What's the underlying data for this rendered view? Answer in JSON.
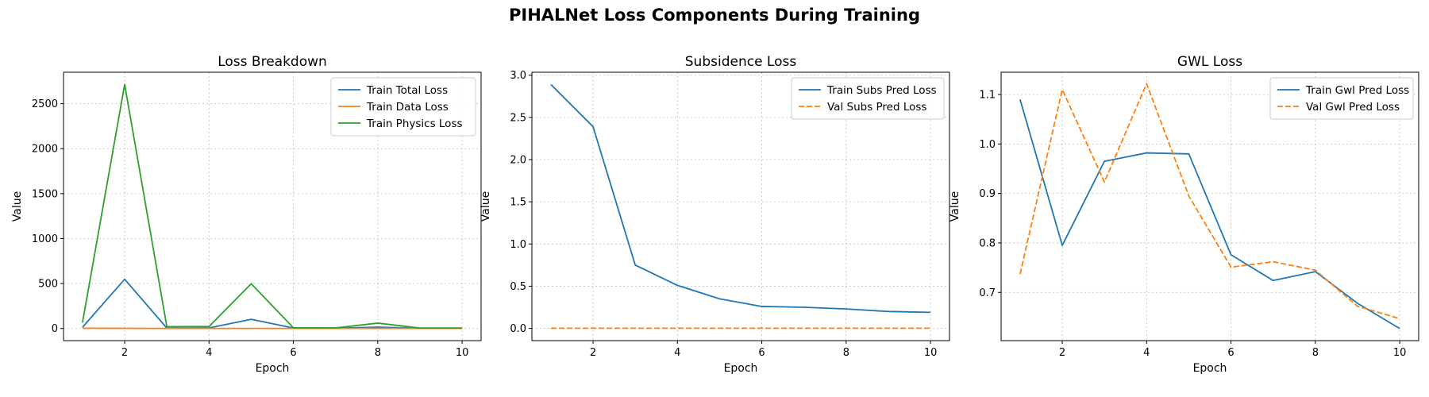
{
  "figure": {
    "title": "PIHALNet Loss Components During Training"
  },
  "chart_data": [
    {
      "type": "line",
      "title": "Loss Breakdown",
      "xlabel": "Epoch",
      "ylabel": "Value",
      "x": [
        1,
        2,
        3,
        4,
        5,
        6,
        7,
        8,
        9,
        10
      ],
      "xlim": [
        0.55,
        10.45
      ],
      "ylim": [
        -135,
        2850
      ],
      "xticks": [
        2,
        4,
        6,
        8,
        10
      ],
      "yticks": [
        0,
        500,
        1000,
        1500,
        2000,
        2500
      ],
      "grid": true,
      "legend": "top-right",
      "series": [
        {
          "name": "Train Total Loss",
          "color": "#1f77b4",
          "dash": "solid",
          "values": [
            14,
            548,
            4,
            6,
            102,
            5,
            4,
            15,
            3,
            3
          ]
        },
        {
          "name": "Train Data Loss",
          "color": "#ff7f0e",
          "dash": "solid",
          "values": [
            3,
            2,
            1,
            1,
            1,
            1,
            1,
            1,
            1,
            1
          ]
        },
        {
          "name": "Train Physics Loss",
          "color": "#2ca02c",
          "dash": "solid",
          "values": [
            65,
            2715,
            20,
            22,
            498,
            8,
            6,
            60,
            5,
            5
          ]
        }
      ]
    },
    {
      "type": "line",
      "title": "Subsidence Loss",
      "xlabel": "Epoch",
      "ylabel": "Value",
      "x": [
        1,
        2,
        3,
        4,
        5,
        6,
        7,
        8,
        9,
        10
      ],
      "xlim": [
        0.55,
        10.45
      ],
      "ylim": [
        -0.145,
        3.035
      ],
      "xticks": [
        2,
        4,
        6,
        8,
        10
      ],
      "yticks": [
        0.0,
        0.5,
        1.0,
        1.5,
        2.0,
        2.5,
        3.0
      ],
      "ytick_decimals": 1,
      "grid": true,
      "legend": "top-right",
      "series": [
        {
          "name": "Train Subs Pred Loss",
          "color": "#1f77b4",
          "dash": "solid",
          "values": [
            2.89,
            2.39,
            0.75,
            0.51,
            0.35,
            0.26,
            0.25,
            0.23,
            0.2,
            0.19
          ]
        },
        {
          "name": "Val Subs Pred Loss",
          "color": "#ff7f0e",
          "dash": "dashed",
          "values": [
            0.002,
            0.002,
            0.002,
            0.002,
            0.002,
            0.002,
            0.002,
            0.002,
            0.002,
            0.002
          ]
        }
      ]
    },
    {
      "type": "line",
      "title": "GWL Loss",
      "xlabel": "Epoch",
      "ylabel": "Value",
      "x": [
        1,
        2,
        3,
        4,
        5,
        6,
        7,
        8,
        9,
        10
      ],
      "xlim": [
        0.55,
        10.45
      ],
      "ylim": [
        0.6025,
        1.145
      ],
      "xticks": [
        2,
        4,
        6,
        8,
        10
      ],
      "yticks": [
        0.7,
        0.8,
        0.9,
        1.0,
        1.1
      ],
      "ytick_decimals": 1,
      "grid": true,
      "legend": "top-right",
      "series": [
        {
          "name": "Train Gwl Pred Loss",
          "color": "#1f77b4",
          "dash": "solid",
          "values": [
            1.09,
            0.795,
            0.965,
            0.982,
            0.98,
            0.776,
            0.724,
            0.742,
            0.678,
            0.627
          ]
        },
        {
          "name": "Val Gwl Pred Loss",
          "color": "#ff7f0e",
          "dash": "dashed",
          "values": [
            0.737,
            1.11,
            0.923,
            1.122,
            0.895,
            0.751,
            0.762,
            0.745,
            0.672,
            0.647
          ]
        }
      ]
    }
  ]
}
